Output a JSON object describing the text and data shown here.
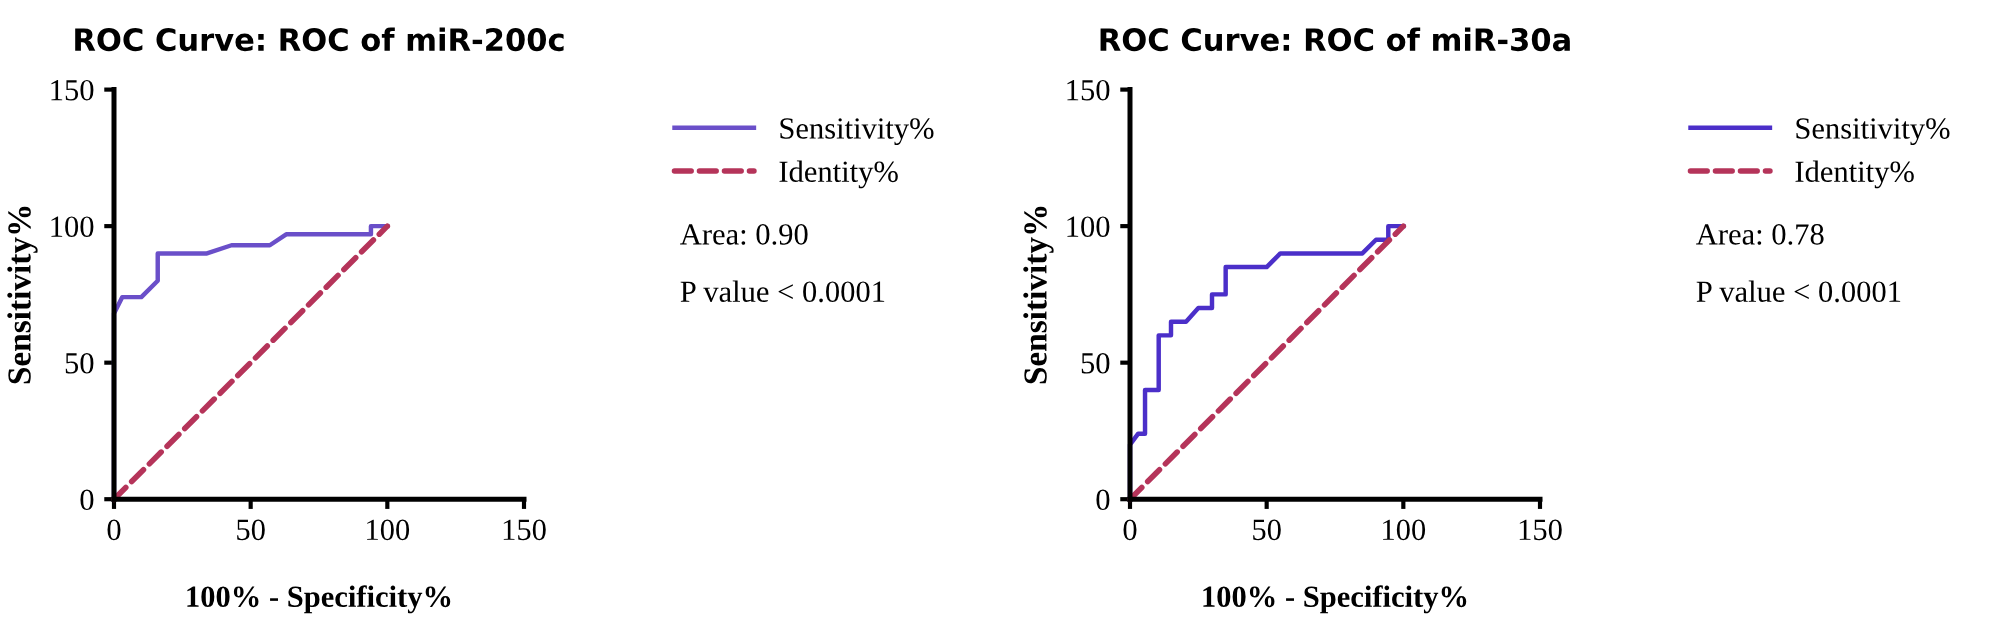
{
  "chart_data": [
    {
      "type": "line",
      "title": "ROC Curve: ROC of miR-200c",
      "xlabel": "100% - Specificity%",
      "ylabel": "Sensitivity%",
      "xlim": [
        0,
        150
      ],
      "ylim": [
        0,
        150
      ],
      "xticks": [
        0,
        50,
        100,
        150
      ],
      "yticks": [
        0,
        50,
        100,
        150
      ],
      "grid": false,
      "legend": "right",
      "annotations": [
        "Area: 0.90",
        "P value < 0.0001"
      ],
      "series": [
        {
          "name": "Sensitivity%",
          "color": "#6a4fc9",
          "line_style": "solid",
          "x": [
            0,
            0,
            3,
            10,
            16,
            16,
            34,
            43,
            57,
            63,
            94,
            94,
            100
          ],
          "values": [
            0,
            68,
            74,
            74,
            80,
            90,
            90,
            93,
            93,
            97,
            97,
            100,
            100
          ]
        },
        {
          "name": "Identity%",
          "color": "#b5345a",
          "line_style": "dashed",
          "x": [
            0,
            100
          ],
          "values": [
            0,
            100
          ]
        }
      ]
    },
    {
      "type": "line",
      "title": "ROC Curve: ROC of miR-30a",
      "xlabel": "100% - Specificity%",
      "ylabel": "Sensitivity%",
      "xlim": [
        0,
        150
      ],
      "ylim": [
        0,
        150
      ],
      "xticks": [
        0,
        50,
        100,
        150
      ],
      "yticks": [
        0,
        50,
        100,
        150
      ],
      "grid": false,
      "legend": "right",
      "annotations": [
        "Area: 0.78",
        "P value < 0.0001"
      ],
      "series": [
        {
          "name": "Sensitivity%",
          "color": "#4b2fc9",
          "line_style": "solid",
          "x": [
            0,
            0,
            3,
            5.5,
            5.5,
            10.5,
            10.5,
            15,
            15,
            20.5,
            25,
            30,
            30,
            35,
            35,
            50,
            55,
            85,
            90,
            94.5,
            94.5,
            100
          ],
          "values": [
            0,
            20,
            24,
            24,
            40,
            40,
            60,
            60,
            65,
            65,
            70,
            70,
            75,
            75,
            85,
            85,
            90,
            90,
            95,
            95,
            100,
            100
          ]
        },
        {
          "name": "Identity%",
          "color": "#b5345a",
          "line_style": "dashed",
          "x": [
            0,
            100
          ],
          "values": [
            0,
            100
          ]
        }
      ]
    }
  ]
}
